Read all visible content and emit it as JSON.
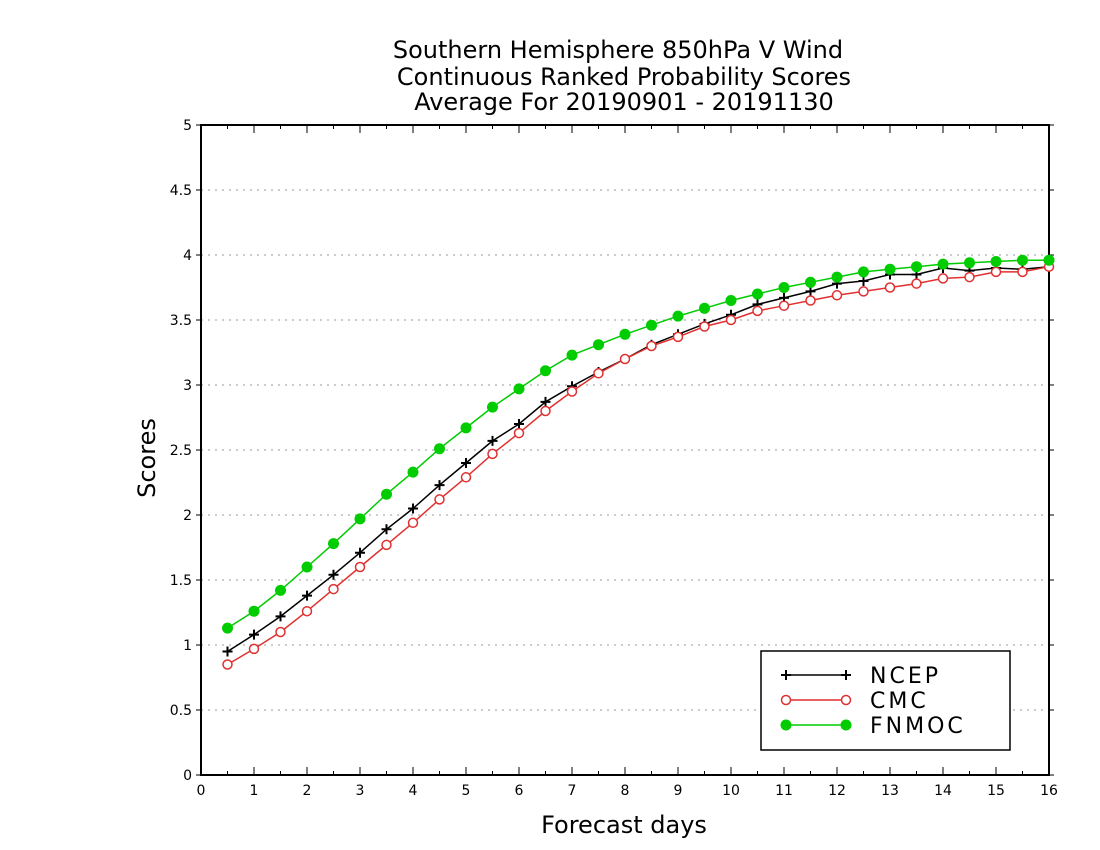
{
  "chart_data": {
    "type": "line",
    "title_lines": [
      "Southern Hemisphere 850hPa V Wind",
      "Continuous Ranked Probability Scores",
      "Average For 20190901 - 20191130"
    ],
    "xlabel": "Forecast days",
    "ylabel": "Scores",
    "xlim": [
      0,
      16
    ],
    "ylim": [
      0,
      5
    ],
    "x_ticks": [
      "0",
      "1",
      "2",
      "3",
      "4",
      "5",
      "6",
      "7",
      "8",
      "9",
      "10",
      "11",
      "12",
      "13",
      "14",
      "15",
      "16"
    ],
    "y_ticks": [
      "0",
      "0.5",
      "1",
      "1.5",
      "2",
      "2.5",
      "3",
      "3.5",
      "4",
      "4.5",
      "5"
    ],
    "grid": "horizontal dotted",
    "legend_position": "bottom-right",
    "x": [
      0.5,
      1,
      1.5,
      2,
      2.5,
      3,
      3.5,
      4,
      4.5,
      5,
      5.5,
      6,
      6.5,
      7,
      7.5,
      8,
      8.5,
      9,
      9.5,
      10,
      10.5,
      11,
      11.5,
      12,
      12.5,
      13,
      13.5,
      14,
      14.5,
      15,
      15.5,
      16
    ],
    "series": [
      {
        "name": "NCEP",
        "color": "#000000",
        "marker": "plus",
        "values": [
          0.95,
          1.08,
          1.22,
          1.38,
          1.54,
          1.71,
          1.89,
          2.05,
          2.23,
          2.4,
          2.57,
          2.7,
          2.87,
          2.99,
          3.1,
          3.2,
          3.31,
          3.39,
          3.47,
          3.54,
          3.62,
          3.67,
          3.72,
          3.78,
          3.8,
          3.85,
          3.85,
          3.9,
          3.88,
          3.9,
          3.89,
          3.91
        ]
      },
      {
        "name": "CMC",
        "color": "#e03030",
        "marker": "open-circle",
        "values": [
          0.85,
          0.97,
          1.1,
          1.26,
          1.43,
          1.6,
          1.77,
          1.94,
          2.12,
          2.29,
          2.47,
          2.63,
          2.8,
          2.95,
          3.09,
          3.2,
          3.3,
          3.37,
          3.45,
          3.5,
          3.57,
          3.61,
          3.65,
          3.69,
          3.72,
          3.75,
          3.78,
          3.82,
          3.83,
          3.87,
          3.87,
          3.91
        ]
      },
      {
        "name": "FNMOC",
        "color": "#00cc00",
        "marker": "filled-circle",
        "values": [
          1.13,
          1.26,
          1.42,
          1.6,
          1.78,
          1.97,
          2.16,
          2.33,
          2.51,
          2.67,
          2.83,
          2.97,
          3.11,
          3.23,
          3.31,
          3.39,
          3.46,
          3.53,
          3.59,
          3.65,
          3.7,
          3.75,
          3.79,
          3.83,
          3.87,
          3.89,
          3.91,
          3.93,
          3.94,
          3.95,
          3.96,
          3.96
        ]
      }
    ]
  }
}
